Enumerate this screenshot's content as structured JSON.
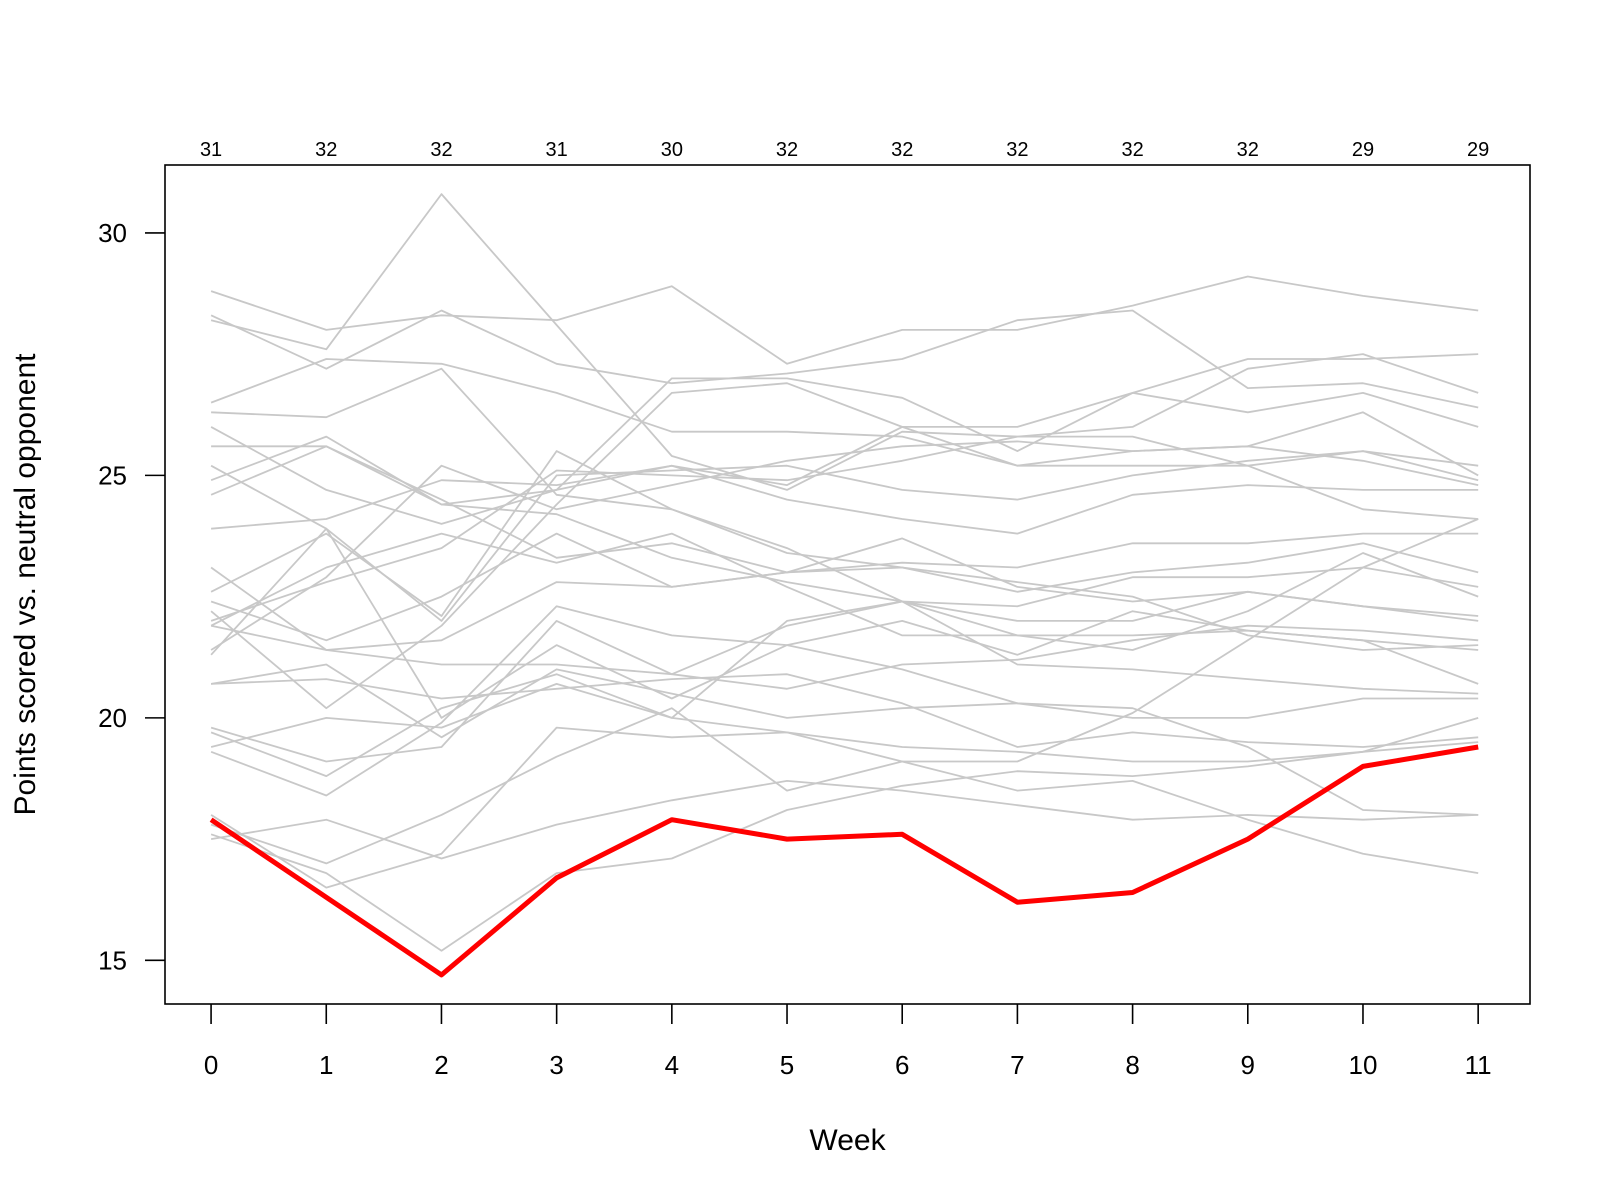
{
  "chart_data": {
    "type": "line",
    "xlabel": "Week",
    "ylabel": "Points scored vs. neutral opponent",
    "x": [
      0,
      1,
      2,
      3,
      4,
      5,
      6,
      7,
      8,
      9,
      10,
      11
    ],
    "xlim": [
      -0.4,
      11.45
    ],
    "ylim": [
      14.1,
      31.4
    ],
    "yticks": [
      15,
      20,
      25,
      30
    ],
    "top_labels": [
      "31",
      "32",
      "32",
      "31",
      "30",
      "32",
      "32",
      "32",
      "32",
      "32",
      "29",
      "29"
    ],
    "highlight_color": "#ff0000",
    "background_color": "#c8c8c8",
    "highlight": [
      17.9,
      16.3,
      14.7,
      16.7,
      17.9,
      17.5,
      17.6,
      16.2,
      16.4,
      17.5,
      19.0,
      19.4
    ],
    "series": [
      {
        "values": [
          28.8,
          28.0,
          28.3,
          28.2,
          28.9,
          27.3,
          28.0,
          28.0,
          28.5,
          29.1,
          28.7,
          28.4
        ]
      },
      {
        "values": [
          28.3,
          27.2,
          28.4,
          27.3,
          26.9,
          27.1,
          27.4,
          28.2,
          28.4,
          26.8,
          26.9,
          26.4
        ]
      },
      {
        "values": [
          28.2,
          27.6,
          30.8,
          28.1,
          25.4,
          24.7,
          25.9,
          25.8,
          26.0,
          27.2,
          27.5,
          26.7
        ]
      },
      {
        "values": [
          26.5,
          27.4,
          27.3,
          26.7,
          25.9,
          25.9,
          25.8,
          25.2,
          25.2,
          25.2,
          25.5,
          25.2
        ]
      },
      {
        "values": [
          26.3,
          26.2,
          27.2,
          24.6,
          24.3,
          23.4,
          23.1,
          22.6,
          23.0,
          23.2,
          23.6,
          23.0
        ]
      },
      {
        "values": [
          26.0,
          24.7,
          24.0,
          24.7,
          27.0,
          27.0,
          26.6,
          25.5,
          26.7,
          27.4,
          27.4,
          27.5
        ]
      },
      {
        "values": [
          25.6,
          25.6,
          24.5,
          23.3,
          23.6,
          23.0,
          23.7,
          22.7,
          22.4,
          22.6,
          22.3,
          22.0
        ]
      },
      {
        "values": [
          25.2,
          23.9,
          22.0,
          25.0,
          25.1,
          25.2,
          24.7,
          24.5,
          25.0,
          25.3,
          25.5,
          24.9
        ]
      },
      {
        "values": [
          24.9,
          25.8,
          24.4,
          24.7,
          25.2,
          24.5,
          24.1,
          23.8,
          24.6,
          24.8,
          24.7,
          24.7
        ]
      },
      {
        "values": [
          24.6,
          25.6,
          24.4,
          24.2,
          23.3,
          22.8,
          22.4,
          22.3,
          22.9,
          22.9,
          23.1,
          22.7
        ]
      },
      {
        "values": [
          23.9,
          24.1,
          24.9,
          24.8,
          25.2,
          24.8,
          26.0,
          26.0,
          26.7,
          26.3,
          26.7,
          26.0
        ]
      },
      {
        "values": [
          23.1,
          21.4,
          21.6,
          22.8,
          22.7,
          23.0,
          23.2,
          23.1,
          23.6,
          23.6,
          23.8,
          23.8
        ]
      },
      {
        "values": [
          22.6,
          23.8,
          22.1,
          25.5,
          24.3,
          23.5,
          22.4,
          21.7,
          21.7,
          21.8,
          21.6,
          21.4
        ]
      },
      {
        "values": [
          22.4,
          21.6,
          22.5,
          23.8,
          22.7,
          23.0,
          23.1,
          22.8,
          22.5,
          21.7,
          21.4,
          21.5
        ]
      },
      {
        "values": [
          22.2,
          20.2,
          21.9,
          24.4,
          26.7,
          26.9,
          26.0,
          25.2,
          25.5,
          25.6,
          25.3,
          24.8
        ]
      },
      {
        "values": [
          22.0,
          22.8,
          23.5,
          25.1,
          25.0,
          24.9,
          25.3,
          25.8,
          25.8,
          25.2,
          24.3,
          24.1
        ]
      },
      {
        "values": [
          21.9,
          23.1,
          23.8,
          23.2,
          23.8,
          22.7,
          21.7,
          21.7,
          21.4,
          22.2,
          23.4,
          22.5
        ]
      },
      {
        "values": [
          21.4,
          22.9,
          25.2,
          24.3,
          24.8,
          25.3,
          25.6,
          25.7,
          25.5,
          25.6,
          26.3,
          25.0
        ]
      },
      {
        "values": [
          21.9,
          21.4,
          21.1,
          21.1,
          20.9,
          20.6,
          21.1,
          21.2,
          21.6,
          21.9,
          21.8,
          21.6
        ]
      },
      {
        "values": [
          21.3,
          23.9,
          20.0,
          21.5,
          20.4,
          21.5,
          22.0,
          21.3,
          22.2,
          21.8,
          21.6,
          20.7
        ]
      },
      {
        "values": [
          20.7,
          20.8,
          20.4,
          20.6,
          20.8,
          20.9,
          20.3,
          19.4,
          19.7,
          19.5,
          19.4,
          19.6
        ]
      },
      {
        "values": [
          20.7,
          21.1,
          19.6,
          21.0,
          20.5,
          20.0,
          20.2,
          20.3,
          20.0,
          20.0,
          20.4,
          20.4
        ]
      },
      {
        "values": [
          19.8,
          19.1,
          19.4,
          22.0,
          20.9,
          21.9,
          22.4,
          22.0,
          22.0,
          22.6,
          22.3,
          22.1
        ]
      },
      {
        "values": [
          19.7,
          18.8,
          20.2,
          20.9,
          20.0,
          22.0,
          22.4,
          21.1,
          21.0,
          20.8,
          20.6,
          20.5
        ]
      },
      {
        "values": [
          19.4,
          20.0,
          19.8,
          20.7,
          20.0,
          19.7,
          19.1,
          18.5,
          18.7,
          17.9,
          17.2,
          16.8
        ]
      },
      {
        "values": [
          19.3,
          18.4,
          19.9,
          22.3,
          21.7,
          21.5,
          21.0,
          20.3,
          20.2,
          19.4,
          18.1,
          18.0
        ]
      },
      {
        "values": [
          18.0,
          16.5,
          17.2,
          19.8,
          19.6,
          19.7,
          19.4,
          19.3,
          19.1,
          19.1,
          19.3,
          20.0
        ]
      },
      {
        "values": [
          17.8,
          17.0,
          18.0,
          19.2,
          20.2,
          18.5,
          19.1,
          19.1,
          20.1,
          21.6,
          23.1,
          24.1
        ]
      },
      {
        "values": [
          17.6,
          16.8,
          15.2,
          16.8,
          17.1,
          18.1,
          18.6,
          18.9,
          18.8,
          19.0,
          19.3,
          19.5
        ]
      },
      {
        "values": [
          17.5,
          17.9,
          17.1,
          17.8,
          18.3,
          18.7,
          18.5,
          18.2,
          17.9,
          18.0,
          17.9,
          18.0
        ]
      }
    ]
  }
}
